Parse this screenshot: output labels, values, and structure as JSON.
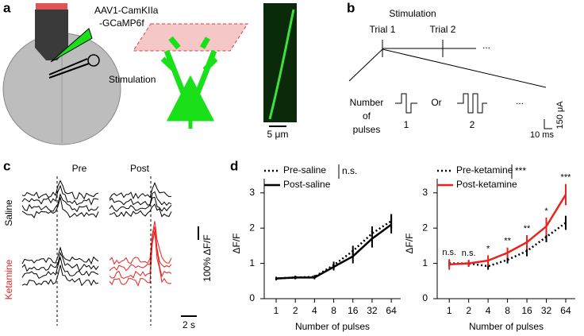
{
  "panel_a": {
    "label": "a",
    "virus_line1": "AAV1-CamKIIa",
    "virus_line2": "-GCaMP6f",
    "stimulation": "Stimulation",
    "scale": "5 μm"
  },
  "panel_b": {
    "label": "b",
    "title": "Stimulation",
    "trial1": "Trial 1",
    "trial2": "Trial 2",
    "ellipsis1": "...",
    "number_line1": "Number",
    "number_line2": "of",
    "number_line3": "pulses",
    "option1": "1",
    "or": "Or",
    "option2": "2",
    "ellipsis2": "...",
    "time_scale": "10 ms",
    "current_scale": "150 μA"
  },
  "panel_c": {
    "label": "c",
    "pre": "Pre",
    "post": "Post",
    "saline": "Saline",
    "ketamine": "Ketamine",
    "df_scale": "100% ΔF/F",
    "time_scale": "2 s"
  },
  "panel_d": {
    "label": "d"
  },
  "chart_data": [
    {
      "type": "line",
      "xlabel": "Number of pulses",
      "ylabel": "ΔF/F",
      "x": [
        1,
        2,
        4,
        8,
        16,
        32,
        64
      ],
      "xscale": "log2",
      "xlim": [
        0.65,
        90
      ],
      "xticks": [
        1,
        2,
        4,
        8,
        16,
        32,
        64
      ],
      "ylim": [
        0,
        3.4
      ],
      "yticks": [
        0,
        1,
        2,
        3
      ],
      "legend_note": "n.s.",
      "series": [
        {
          "name": "Pre-saline",
          "color": "#000000",
          "dash": true,
          "values": [
            0.57,
            0.6,
            0.62,
            0.95,
            1.35,
            1.85,
            2.2
          ],
          "errors": [
            0.05,
            0.05,
            0.05,
            0.1,
            0.15,
            0.2,
            0.2
          ]
        },
        {
          "name": "Post-saline",
          "color": "#000000",
          "dash": false,
          "values": [
            0.57,
            0.6,
            0.6,
            0.9,
            1.2,
            1.7,
            2.1
          ],
          "errors": [
            0.05,
            0.05,
            0.05,
            0.1,
            0.2,
            0.25,
            0.25
          ]
        }
      ]
    },
    {
      "type": "line",
      "xlabel": "Number of pulses",
      "ylabel": "ΔF/F",
      "x": [
        1,
        2,
        4,
        8,
        16,
        32,
        64
      ],
      "xscale": "log2",
      "xlim": [
        0.65,
        90
      ],
      "xticks": [
        1,
        2,
        4,
        8,
        16,
        32,
        64
      ],
      "ylim": [
        0,
        3.4
      ],
      "yticks": [
        0,
        1,
        2,
        3
      ],
      "legend_note": "***",
      "point_labels": [
        "n.s.",
        "n.s.",
        "*",
        "**",
        "**",
        "*",
        "***"
      ],
      "series": [
        {
          "name": "Pre-ketamine",
          "color": "#000000",
          "dash": true,
          "values": [
            1.0,
            1.0,
            0.92,
            1.1,
            1.35,
            1.75,
            2.15
          ],
          "errors": [
            0.08,
            0.08,
            0.1,
            0.1,
            0.15,
            0.15,
            0.2
          ]
        },
        {
          "name": "Post-ketamine",
          "color": "#e8231f",
          "dash": false,
          "values": [
            0.97,
            1.0,
            1.08,
            1.3,
            1.6,
            2.05,
            2.95
          ],
          "errors": [
            0.15,
            0.1,
            0.15,
            0.15,
            0.2,
            0.25,
            0.3
          ]
        }
      ]
    }
  ]
}
